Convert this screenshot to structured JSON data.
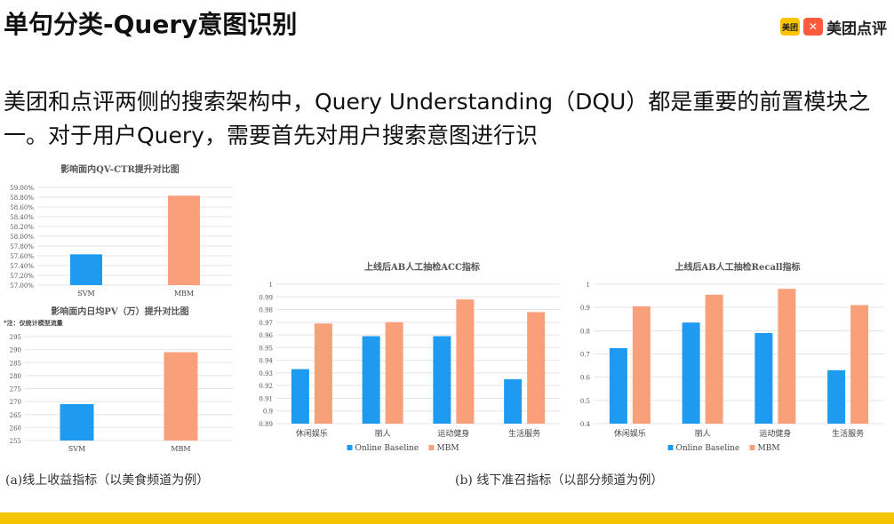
{
  "title": "单句分类-Query意图识别",
  "logo": {
    "badge1": "美团",
    "badge2": "✕",
    "text": "美团点评"
  },
  "paragraph": "美团和点评两侧的搜索架构中，Query Understanding（DQU）都是重要的前置模块之一。对于用户Query，需要首先对用户搜索意图进行识",
  "captions": {
    "a": "(a)线上收益指标（以美食频道为例）",
    "b": "(b) 线下准召指标（以部分频道为例）"
  },
  "note": "*注：仅统计模型流量",
  "colors": {
    "baseline": "#1e9bf0",
    "mbm": "#f9a07a",
    "bottom_bar": "#f5c400"
  },
  "chart_data": [
    {
      "type": "bar",
      "title": "影响面内QV-CTR提升对比图",
      "categories": [
        "SVM",
        "MBM"
      ],
      "values": [
        57.63,
        58.83
      ],
      "ylim": [
        57.0,
        59.0
      ],
      "yticks": [
        "59.00%",
        "58.80%",
        "58.60%",
        "58.40%",
        "58.20%",
        "58.00%",
        "57.80%",
        "57.60%",
        "57.40%",
        "57.20%",
        "57.00%"
      ],
      "colors": [
        "#1e9bf0",
        "#f9a07a"
      ]
    },
    {
      "type": "bar",
      "title": "影响面内日均PV（万）提升对比图",
      "categories": [
        "SVM",
        "MBM"
      ],
      "values": [
        269,
        289
      ],
      "ylim": [
        255,
        295
      ],
      "yticks": [
        "295",
        "290",
        "285",
        "280",
        "275",
        "270",
        "265",
        "260",
        "255"
      ],
      "colors": [
        "#1e9bf0",
        "#f9a07a"
      ]
    },
    {
      "type": "bar",
      "title": "上线后AB人工抽检ACC指标",
      "categories": [
        "休闲娱乐",
        "丽人",
        "运动健身",
        "生活服务"
      ],
      "series": [
        {
          "name": "Online Baseline",
          "values": [
            0.933,
            0.959,
            0.959,
            0.925
          ]
        },
        {
          "name": "MBM",
          "values": [
            0.969,
            0.97,
            0.988,
            0.978
          ]
        }
      ],
      "ylim": [
        0.89,
        1.0
      ],
      "yticks": [
        "1",
        "0.99",
        "0.98",
        "0.97",
        "0.96",
        "0.95",
        "0.94",
        "0.93",
        "0.92",
        "0.91",
        "0.9",
        "0.89"
      ]
    },
    {
      "type": "bar",
      "title": "上线后AB人工抽检Recall指标",
      "categories": [
        "休闲娱乐",
        "丽人",
        "运动健身",
        "生活服务"
      ],
      "series": [
        {
          "name": "Online Baseline",
          "values": [
            0.725,
            0.835,
            0.79,
            0.63
          ]
        },
        {
          "name": "MBM",
          "values": [
            0.905,
            0.955,
            0.98,
            0.91
          ]
        }
      ],
      "ylim": [
        0.4,
        1.0
      ],
      "yticks": [
        "1",
        "0.9",
        "0.8",
        "0.7",
        "0.6",
        "0.5",
        "0.4"
      ]
    }
  ]
}
